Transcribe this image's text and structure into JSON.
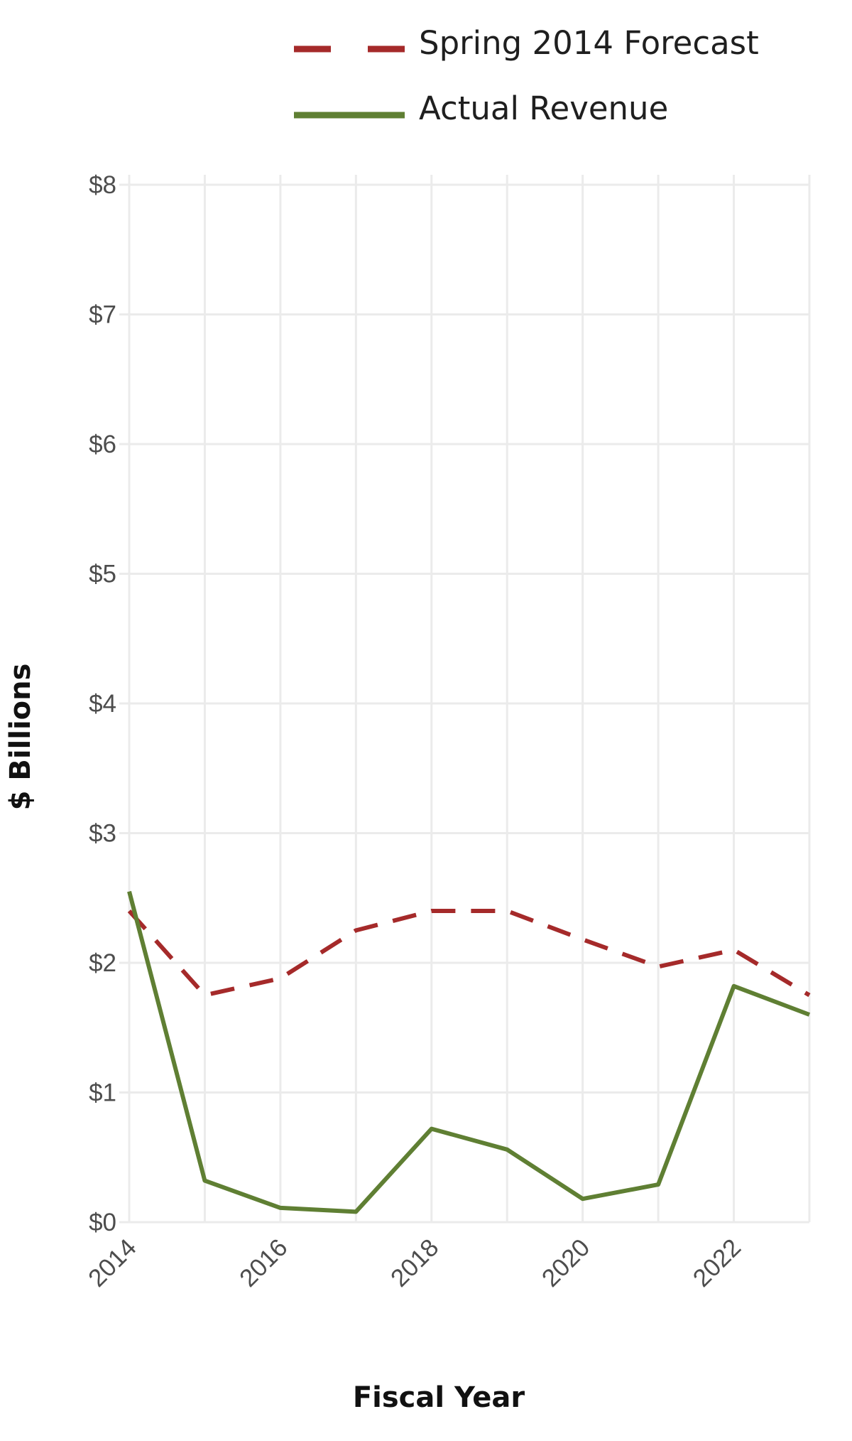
{
  "chart_data": {
    "type": "line",
    "title": "",
    "xlabel": "Fiscal Year",
    "ylabel": "$ Billions",
    "xlim": [
      2014,
      2023
    ],
    "ylim": [
      0,
      8
    ],
    "x_ticks": [
      2014,
      2016,
      2018,
      2020,
      2022
    ],
    "y_ticks": [
      0,
      1,
      2,
      3,
      4,
      5,
      6,
      7,
      8
    ],
    "y_tick_labels": [
      "$0",
      "$1",
      "$2",
      "$3",
      "$4",
      "$5",
      "$6",
      "$7",
      "$8"
    ],
    "x_tick_labels": [
      "2014",
      "2016",
      "2018",
      "2020",
      "2022"
    ],
    "grid": true,
    "legend_position": "top",
    "x": [
      2014,
      2015,
      2016,
      2017,
      2018,
      2019,
      2020,
      2021,
      2022,
      2023
    ],
    "series": [
      {
        "name": "Spring 2014 Forecast",
        "color": "#a52a2a",
        "style": "dashed",
        "values": [
          2.4,
          1.75,
          1.88,
          2.25,
          2.4,
          2.4,
          2.18,
          1.97,
          2.1,
          1.75
        ]
      },
      {
        "name": "Actual Revenue",
        "color": "#5f7f33",
        "style": "solid",
        "values": [
          2.55,
          0.32,
          0.11,
          0.08,
          0.72,
          0.56,
          0.18,
          0.29,
          1.82,
          1.6
        ]
      }
    ]
  }
}
